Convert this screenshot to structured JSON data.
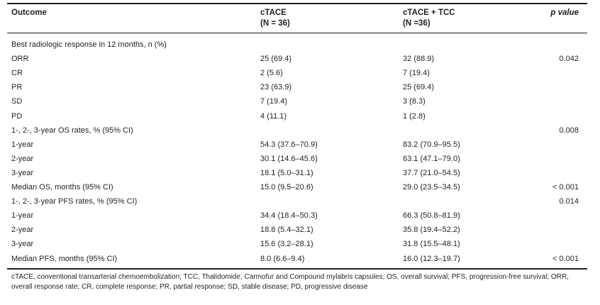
{
  "table": {
    "columns": {
      "outcome": "Outcome",
      "ctace": "cTACE",
      "ctace_n": "(N = 36)",
      "ctace_tcc": "cTACE + TCC",
      "ctace_tcc_n": "(N =36)",
      "p_value": "p value"
    },
    "rows": [
      {
        "label": "Best radiologic response in 12 months, n (%)",
        "ctace": "",
        "tcc": "",
        "p": ""
      },
      {
        "label": "ORR",
        "ctace": "25 (69.4)",
        "tcc": "32 (88.9)",
        "p": "0.042"
      },
      {
        "label": "CR",
        "ctace": "2 (5.6)",
        "tcc": "7 (19.4)",
        "p": ""
      },
      {
        "label": "PR",
        "ctace": "23 (63.9)",
        "tcc": "25 (69.4)",
        "p": ""
      },
      {
        "label": "SD",
        "ctace": "7 (19.4)",
        "tcc": "3 (8.3)",
        "p": ""
      },
      {
        "label": "PD",
        "ctace": "4 (11.1)",
        "tcc": "1 (2.8)",
        "p": ""
      },
      {
        "label": "1-, 2-, 3-year OS rates, % (95% CI)",
        "ctace": "",
        "tcc": "",
        "p": "0.008"
      },
      {
        "label": "1-year",
        "ctace": "54.3 (37.6–70.9)",
        "tcc": "83.2 (70.9–95.5)",
        "p": ""
      },
      {
        "label": "2-year",
        "ctace": "30.1 (14.6–45.6)",
        "tcc": "63.1 (47.1–79.0)",
        "p": ""
      },
      {
        "label": "3-year",
        "ctace": "18.1 (5.0–31.1)",
        "tcc": "37.7 (21.0–54.5)",
        "p": ""
      },
      {
        "label": "Median OS, months (95% CI)",
        "ctace": "15.0 (9.5–20.6)",
        "tcc": "29.0 (23.5–34.5)",
        "p": "< 0.001"
      },
      {
        "label": "1-, 2-, 3-year PFS rates, % (95% CI)",
        "ctace": "",
        "tcc": "",
        "p": "0.014"
      },
      {
        "label": "1-year",
        "ctace": "34.4 (18.4–50.3)",
        "tcc": "66.3 (50.8–81.9)",
        "p": ""
      },
      {
        "label": "2-year",
        "ctace": "18.8 (5.4–32.1)",
        "tcc": "35.8 (19.4–52.2)",
        "p": ""
      },
      {
        "label": "3-year",
        "ctace": "15.6 (3.2–28.1)",
        "tcc": "31.8 (15.5–48.1)",
        "p": ""
      },
      {
        "label": "Median PFS, months (95% CI)",
        "ctace": "8.0 (6.6–9.4)",
        "tcc": "16.0 (12.3–19.7)",
        "p": "< 0.001"
      }
    ],
    "footnote": "cTACE, conventional transarterial chemoembolization; TCC, Thalidomide, Carmofur and Compound mylabris capsules; OS, overall survival; PFS, progression-free survival; ORR, overall response rate; CR, complete response; PR, partial response; SD, stable disease; PD, progressive disease"
  }
}
